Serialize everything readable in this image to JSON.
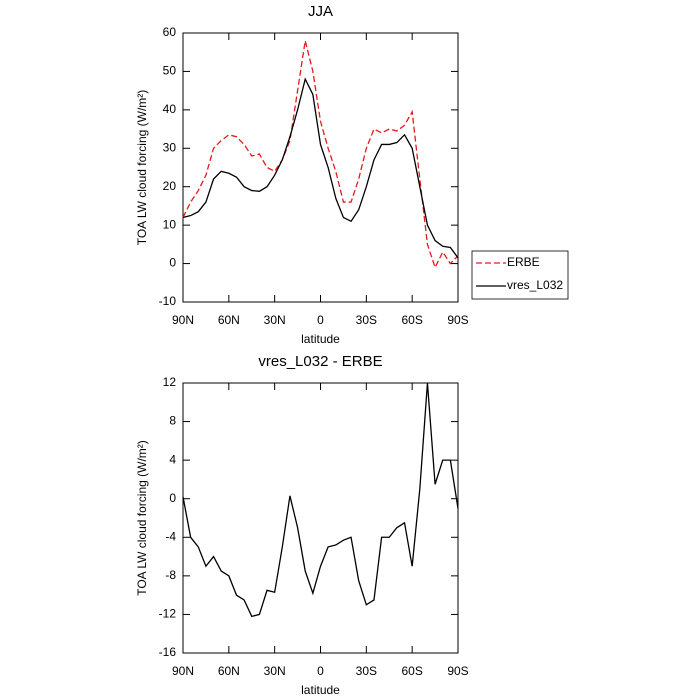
{
  "chart_data": [
    {
      "type": "line",
      "title": "JJA",
      "xlabel": "latitude",
      "ylabel": "TOA LW cloud forcing (W/m²)",
      "x": [
        90,
        85,
        80,
        75,
        70,
        65,
        60,
        55,
        50,
        45,
        40,
        35,
        30,
        25,
        20,
        15,
        10,
        5,
        0,
        -5,
        -10,
        -15,
        -20,
        -25,
        -30,
        -35,
        -40,
        -45,
        -50,
        -55,
        -60,
        -65,
        -70,
        -75,
        -80,
        -85,
        -90
      ],
      "series": [
        {
          "name": "ERBE",
          "color": "#e41a1c",
          "linestyle": "dashed",
          "values": [
            12,
            16,
            19,
            23,
            30,
            32,
            33.5,
            33,
            31,
            28,
            28.5,
            25,
            24,
            27,
            32,
            45,
            58,
            50,
            37,
            30,
            24,
            16,
            16,
            22,
            30,
            35,
            34,
            35,
            34.5,
            36,
            39.5,
            22,
            5,
            -1,
            3,
            0,
            2
          ]
        },
        {
          "name": "vres_L032",
          "color": "#000000",
          "linestyle": "solid",
          "values": [
            12,
            12.5,
            13.5,
            16,
            22,
            24,
            23.5,
            22.5,
            20,
            19,
            18.8,
            20,
            23,
            27,
            33,
            40,
            48,
            44,
            31,
            25,
            17,
            12,
            11,
            14,
            20,
            27,
            31,
            31,
            31.5,
            33.5,
            30,
            20,
            10,
            6,
            4.5,
            4.2,
            1.5
          ]
        }
      ],
      "xlim": [
        90,
        -90
      ],
      "xticks": [
        {
          "value": 90,
          "label": "90N"
        },
        {
          "value": 60,
          "label": "60N"
        },
        {
          "value": 30,
          "label": "30N"
        },
        0,
        {
          "value": -30,
          "label": "30S"
        },
        {
          "value": -60,
          "label": "60S"
        },
        {
          "value": -90,
          "label": "90S"
        }
      ],
      "ylim": [
        -10,
        60
      ],
      "yticks": [
        -10,
        0,
        10,
        20,
        30,
        40,
        50,
        60
      ],
      "legend": "right"
    },
    {
      "type": "line",
      "title": "vres_L032 - ERBE",
      "xlabel": "latitude",
      "ylabel": "TOA LW cloud forcing (W/m²)",
      "x": [
        90,
        85,
        80,
        75,
        70,
        65,
        60,
        55,
        50,
        45,
        40,
        35,
        30,
        25,
        20,
        15,
        10,
        5,
        0,
        -5,
        -10,
        -15,
        -20,
        -25,
        -30,
        -35,
        -40,
        -45,
        -50,
        -55,
        -60,
        -65,
        -70,
        -75,
        -80,
        -85,
        -90
      ],
      "values": [
        0.2,
        -4,
        -5,
        -7,
        -6,
        -7.5,
        -8,
        -10,
        -10.5,
        -12.2,
        -12,
        -9.5,
        -9.7,
        -5,
        0.3,
        -3,
        -7.5,
        -9.8,
        -7,
        -5,
        -4.8,
        -4.3,
        -4,
        -8.5,
        -11,
        -10.5,
        -4,
        -4,
        -3,
        -2.5,
        -7,
        1,
        12,
        1.5,
        4,
        4,
        -1
      ],
      "color": "#000000",
      "xlim": [
        90,
        -90
      ],
      "xticks": [
        {
          "value": 90,
          "label": "90N"
        },
        {
          "value": 60,
          "label": "60N"
        },
        {
          "value": 30,
          "label": "30N"
        },
        0,
        {
          "value": -30,
          "label": "30S"
        },
        {
          "value": -60,
          "label": "60S"
        },
        {
          "value": -90,
          "label": "90S"
        }
      ],
      "ylim": [
        -16,
        12
      ],
      "yticks": [
        -16,
        -12,
        -8,
        -4,
        0,
        4,
        8,
        12
      ]
    }
  ]
}
